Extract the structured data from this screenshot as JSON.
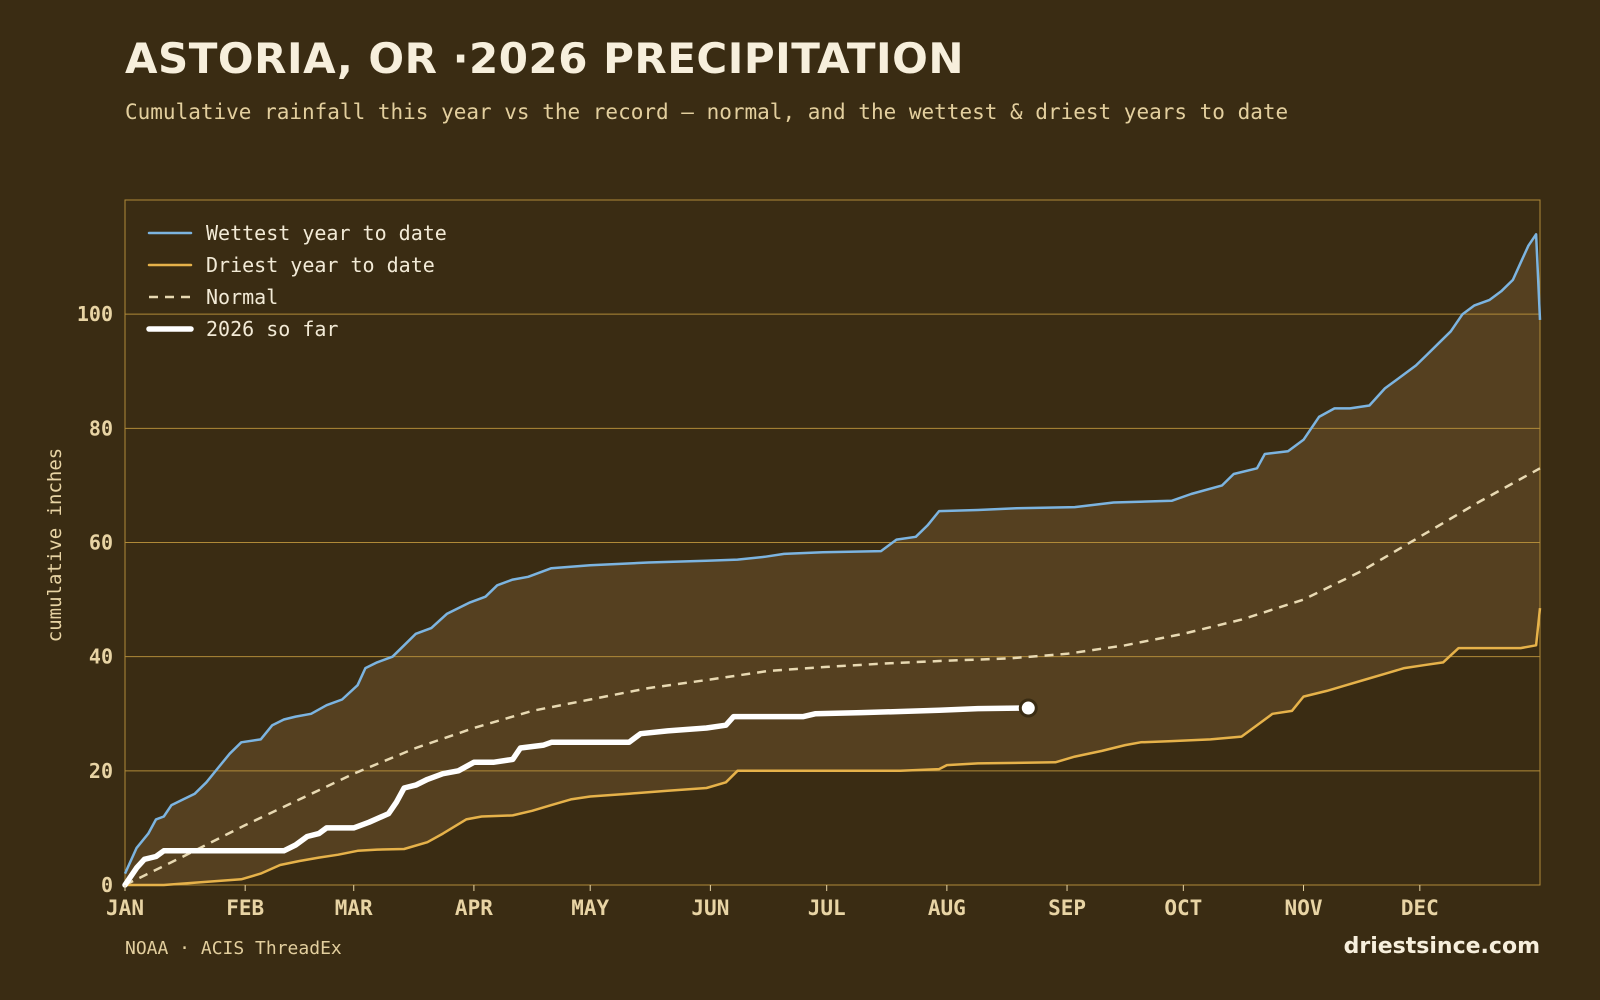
{
  "header": {
    "title": "ASTORIA, OR ·2026 PRECIPITATION",
    "subtitle": "Cumulative rainfall this year vs the record — normal, and the wettest & driest years to date"
  },
  "footer": {
    "source": "NOAA · ACIS ThreadEx",
    "site": "driestsince.com"
  },
  "colors": {
    "background": "#3a2c13",
    "band": "#554020",
    "grid": "#b08a38",
    "wettest": "#7cb4e0",
    "driest": "#e6b24a",
    "normal": "#e8d9b2",
    "current": "#ffffff",
    "tick_text": "#e8d4a4"
  },
  "chart_data": {
    "type": "line",
    "ylabel": "cumulative inches",
    "xlabel": "",
    "ylim": [
      0,
      120
    ],
    "xlim": [
      0,
      365
    ],
    "yticks": [
      0,
      20,
      40,
      60,
      80,
      100
    ],
    "grid": true,
    "legend_position": "top-left",
    "x_units": "day of year",
    "months": [
      {
        "label": "JAN",
        "day": 0
      },
      {
        "label": "FEB",
        "day": 31
      },
      {
        "label": "MAR",
        "day": 59
      },
      {
        "label": "APR",
        "day": 90
      },
      {
        "label": "MAY",
        "day": 120
      },
      {
        "label": "JUN",
        "day": 151
      },
      {
        "label": "JUL",
        "day": 181
      },
      {
        "label": "AUG",
        "day": 212
      },
      {
        "label": "SEP",
        "day": 243
      },
      {
        "label": "OCT",
        "day": 273
      },
      {
        "label": "NOV",
        "day": 304
      },
      {
        "label": "DEC",
        "day": 334
      }
    ],
    "series": [
      {
        "name": "Wettest year to date",
        "style": "solid",
        "points": [
          [
            0,
            2
          ],
          [
            3,
            6.5
          ],
          [
            6,
            9
          ],
          [
            8,
            11.5
          ],
          [
            10,
            12
          ],
          [
            12,
            14
          ],
          [
            15,
            15
          ],
          [
            18,
            16
          ],
          [
            21,
            18
          ],
          [
            24,
            20.5
          ],
          [
            27,
            23
          ],
          [
            30,
            25
          ],
          [
            35,
            25.5
          ],
          [
            38,
            28
          ],
          [
            41,
            29
          ],
          [
            44,
            29.5
          ],
          [
            48,
            30
          ],
          [
            52,
            31.5
          ],
          [
            56,
            32.5
          ],
          [
            60,
            35
          ],
          [
            62,
            38
          ],
          [
            65,
            39
          ],
          [
            69,
            40
          ],
          [
            72,
            42
          ],
          [
            75,
            44
          ],
          [
            79,
            45
          ],
          [
            83,
            47.5
          ],
          [
            86,
            48.5
          ],
          [
            89,
            49.5
          ],
          [
            93,
            50.5
          ],
          [
            96,
            52.5
          ],
          [
            100,
            53.5
          ],
          [
            104,
            54
          ],
          [
            110,
            55.5
          ],
          [
            120,
            56
          ],
          [
            135,
            56.5
          ],
          [
            150,
            56.8
          ],
          [
            158,
            57
          ],
          [
            165,
            57.5
          ],
          [
            170,
            58
          ],
          [
            180,
            58.3
          ],
          [
            195,
            58.5
          ],
          [
            199,
            60.5
          ],
          [
            204,
            61
          ],
          [
            207,
            63
          ],
          [
            210,
            65.5
          ],
          [
            220,
            65.7
          ],
          [
            230,
            66
          ],
          [
            245,
            66.2
          ],
          [
            255,
            67
          ],
          [
            270,
            67.3
          ],
          [
            275,
            68.5
          ],
          [
            283,
            70
          ],
          [
            286,
            72
          ],
          [
            292,
            73
          ],
          [
            294,
            75.5
          ],
          [
            300,
            76
          ],
          [
            304,
            78
          ],
          [
            308,
            82
          ],
          [
            312,
            83.5
          ],
          [
            316,
            83.5
          ],
          [
            321,
            84
          ],
          [
            325,
            87
          ],
          [
            329,
            89
          ],
          [
            333,
            91
          ],
          [
            336,
            93
          ],
          [
            339,
            95
          ],
          [
            342,
            97
          ],
          [
            345,
            100
          ],
          [
            348,
            101.5
          ],
          [
            352,
            102.5
          ],
          [
            355,
            104
          ],
          [
            358,
            106
          ],
          [
            360,
            109
          ],
          [
            362,
            112
          ],
          [
            364,
            114
          ],
          [
            365,
            99
          ]
        ]
      },
      {
        "name": "Driest year to date",
        "style": "solid",
        "points": [
          [
            0,
            0
          ],
          [
            10,
            0
          ],
          [
            20,
            0.5
          ],
          [
            30,
            1
          ],
          [
            35,
            2
          ],
          [
            40,
            3.5
          ],
          [
            45,
            4.2
          ],
          [
            50,
            4.8
          ],
          [
            55,
            5.3
          ],
          [
            60,
            6
          ],
          [
            65,
            6.2
          ],
          [
            72,
            6.3
          ],
          [
            78,
            7.5
          ],
          [
            82,
            9
          ],
          [
            88,
            11.5
          ],
          [
            92,
            12
          ],
          [
            100,
            12.2
          ],
          [
            105,
            13
          ],
          [
            110,
            14
          ],
          [
            115,
            15
          ],
          [
            120,
            15.5
          ],
          [
            130,
            16
          ],
          [
            140,
            16.5
          ],
          [
            150,
            17
          ],
          [
            155,
            18
          ],
          [
            158,
            20
          ],
          [
            165,
            20
          ],
          [
            180,
            20
          ],
          [
            200,
            20
          ],
          [
            210,
            20.3
          ],
          [
            212,
            21
          ],
          [
            220,
            21.3
          ],
          [
            240,
            21.5
          ],
          [
            245,
            22.5
          ],
          [
            252,
            23.5
          ],
          [
            258,
            24.5
          ],
          [
            262,
            25
          ],
          [
            270,
            25.2
          ],
          [
            280,
            25.5
          ],
          [
            288,
            26
          ],
          [
            292,
            28
          ],
          [
            296,
            30
          ],
          [
            301,
            30.5
          ],
          [
            304,
            33
          ],
          [
            310,
            34
          ],
          [
            315,
            35
          ],
          [
            320,
            36
          ],
          [
            325,
            37
          ],
          [
            330,
            38
          ],
          [
            335,
            38.5
          ],
          [
            340,
            39
          ],
          [
            344,
            41.5
          ],
          [
            350,
            41.5
          ],
          [
            360,
            41.5
          ],
          [
            364,
            42
          ],
          [
            365,
            48.5
          ]
        ]
      },
      {
        "name": "Normal",
        "style": "dashed",
        "points": [
          [
            0,
            0
          ],
          [
            15,
            5
          ],
          [
            31,
            10.5
          ],
          [
            45,
            15
          ],
          [
            59,
            19.5
          ],
          [
            75,
            24
          ],
          [
            90,
            27.5
          ],
          [
            105,
            30.5
          ],
          [
            120,
            32.5
          ],
          [
            135,
            34.5
          ],
          [
            151,
            36
          ],
          [
            166,
            37.5
          ],
          [
            181,
            38.2
          ],
          [
            196,
            38.8
          ],
          [
            212,
            39.3
          ],
          [
            228,
            39.7
          ],
          [
            243,
            40.5
          ],
          [
            258,
            42
          ],
          [
            273,
            44
          ],
          [
            288,
            46.5
          ],
          [
            304,
            50
          ],
          [
            319,
            55
          ],
          [
            334,
            61
          ],
          [
            349,
            67
          ],
          [
            365,
            73
          ]
        ]
      },
      {
        "name": "2026 so far",
        "style": "bold",
        "points": [
          [
            0,
            0
          ],
          [
            3,
            3
          ],
          [
            5,
            4.5
          ],
          [
            8,
            5
          ],
          [
            10,
            6
          ],
          [
            20,
            6
          ],
          [
            31,
            6
          ],
          [
            41,
            6
          ],
          [
            44,
            7
          ],
          [
            47,
            8.5
          ],
          [
            50,
            9
          ],
          [
            52,
            10
          ],
          [
            59,
            10
          ],
          [
            63,
            11
          ],
          [
            68,
            12.5
          ],
          [
            70,
            14.5
          ],
          [
            72,
            17
          ],
          [
            75,
            17.5
          ],
          [
            78,
            18.5
          ],
          [
            82,
            19.5
          ],
          [
            86,
            20
          ],
          [
            90,
            21.5
          ],
          [
            95,
            21.5
          ],
          [
            100,
            22
          ],
          [
            102,
            24
          ],
          [
            108,
            24.5
          ],
          [
            110,
            25
          ],
          [
            120,
            25
          ],
          [
            130,
            25
          ],
          [
            133,
            26.5
          ],
          [
            140,
            27
          ],
          [
            150,
            27.5
          ],
          [
            155,
            28
          ],
          [
            157,
            29.5
          ],
          [
            165,
            29.5
          ],
          [
            175,
            29.5
          ],
          [
            178,
            30
          ],
          [
            190,
            30.2
          ],
          [
            200,
            30.4
          ],
          [
            210,
            30.6
          ],
          [
            220,
            30.9
          ],
          [
            233,
            31
          ]
        ]
      }
    ]
  }
}
